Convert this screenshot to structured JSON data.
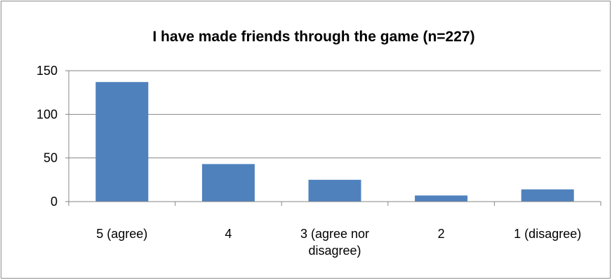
{
  "chart_data": {
    "type": "bar",
    "title": "I have made friends through the game (n=227)",
    "xlabel": "",
    "ylabel": "",
    "categories": [
      [
        "5 (agree)"
      ],
      [
        "4"
      ],
      [
        "3 (agree nor",
        "disagree)"
      ],
      [
        "2"
      ],
      [
        "1 (disagree)"
      ]
    ],
    "values": [
      137,
      43,
      25,
      7,
      14
    ],
    "ylim": [
      0,
      150
    ],
    "yticks": [
      0,
      50,
      100,
      150
    ],
    "grid": true,
    "legend": "none",
    "colors": {
      "bar": "#4f81bd",
      "grid": "#868686",
      "axis": "#868686"
    }
  }
}
